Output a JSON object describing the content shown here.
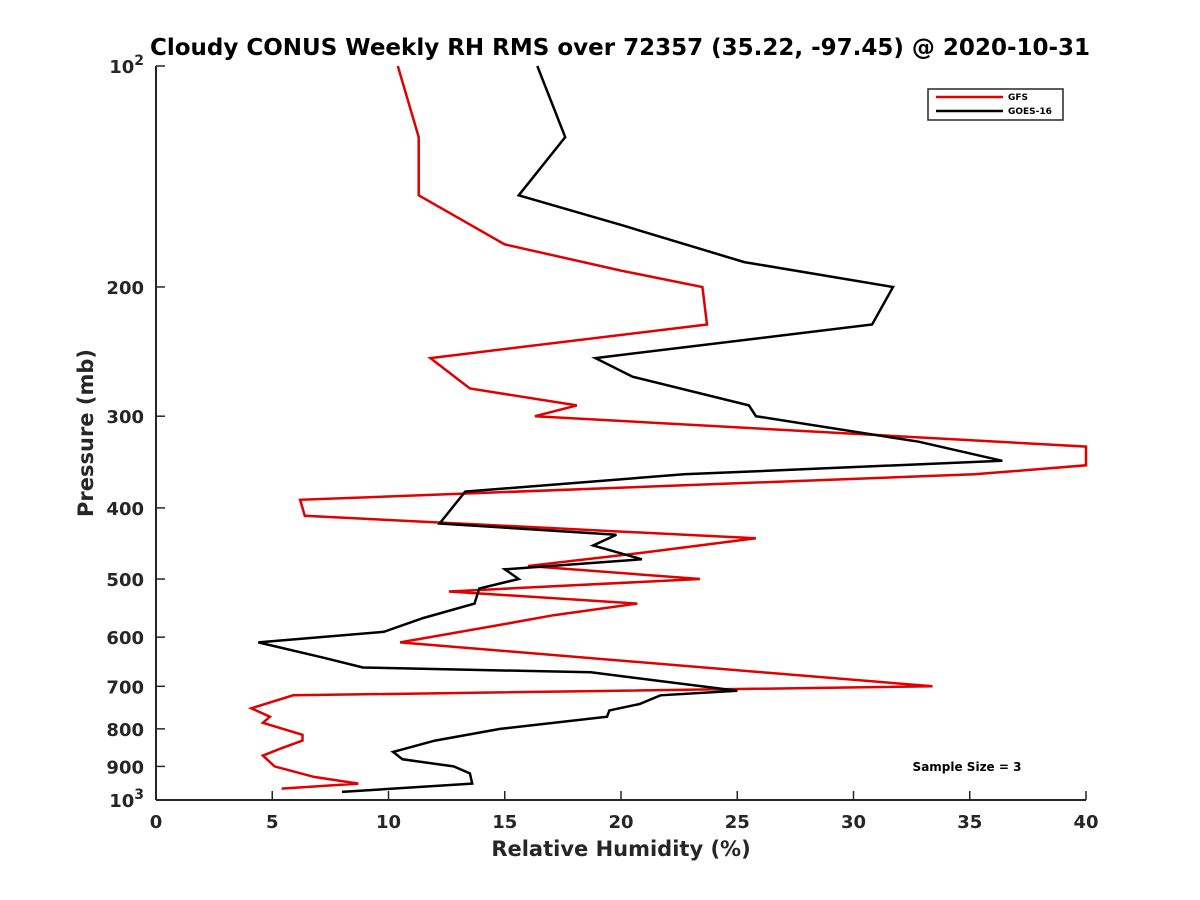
{
  "chart_data": {
    "type": "line",
    "title": "Cloudy CONUS Weekly RH RMS over 72357 (35.22, -97.45) @ 2020-10-31",
    "xlabel": "Relative Humidity (%)",
    "ylabel": "Pressure (mb)",
    "xlim": [
      0,
      40
    ],
    "ylim": [
      1000,
      100
    ],
    "y_scale": "log",
    "y_reversed": true,
    "x_ticks": [
      "0",
      "5",
      "10",
      "15",
      "20",
      "25",
      "30",
      "35",
      "40"
    ],
    "y_ticks": [
      {
        "value": 100,
        "base": "10",
        "exp": "2"
      },
      {
        "value": 200,
        "label": "200"
      },
      {
        "value": 300,
        "label": "300"
      },
      {
        "value": 400,
        "label": "400"
      },
      {
        "value": 500,
        "label": "500"
      },
      {
        "value": 600,
        "label": "600"
      },
      {
        "value": 700,
        "label": "700"
      },
      {
        "value": 800,
        "label": "800"
      },
      {
        "value": 900,
        "label": "900"
      },
      {
        "value": 1000,
        "base": "10",
        "exp": "3"
      }
    ],
    "grid": false,
    "legend_position": "top-right",
    "annotation": "Sample Size = 3",
    "series": [
      {
        "name": "GFS",
        "color": "#e00000",
        "points": [
          [
            10.4,
            100
          ],
          [
            11.3,
            125
          ],
          [
            11.3,
            150
          ],
          [
            15.0,
            175
          ],
          [
            20.0,
            190
          ],
          [
            23.5,
            200
          ],
          [
            23.7,
            225
          ],
          [
            11.8,
            250
          ],
          [
            13.5,
            275
          ],
          [
            18.1,
            290
          ],
          [
            16.3,
            300
          ],
          [
            40.0,
            330
          ],
          [
            40.0,
            350
          ],
          [
            35.2,
            360
          ],
          [
            6.2,
            390
          ],
          [
            6.4,
            410
          ],
          [
            25.8,
            440
          ],
          [
            21.0,
            460
          ],
          [
            16.0,
            480
          ],
          [
            23.4,
            500
          ],
          [
            12.6,
            520
          ],
          [
            20.7,
            540
          ],
          [
            17.1,
            560
          ],
          [
            15.1,
            575
          ],
          [
            10.5,
            610
          ],
          [
            33.4,
            700
          ],
          [
            5.9,
            720
          ],
          [
            4.1,
            750
          ],
          [
            4.9,
            770
          ],
          [
            4.6,
            785
          ],
          [
            6.3,
            815
          ],
          [
            6.3,
            830
          ],
          [
            5.4,
            850
          ],
          [
            4.6,
            870
          ],
          [
            5.1,
            900
          ],
          [
            6.8,
            930
          ],
          [
            8.7,
            950
          ],
          [
            5.4,
            965
          ]
        ]
      },
      {
        "name": "GOES-16",
        "color": "#000000",
        "points": [
          [
            16.4,
            100
          ],
          [
            17.6,
            125
          ],
          [
            15.6,
            150
          ],
          [
            20.1,
            165
          ],
          [
            25.3,
            185
          ],
          [
            31.7,
            200
          ],
          [
            30.8,
            225
          ],
          [
            18.9,
            250
          ],
          [
            20.5,
            265
          ],
          [
            25.5,
            290
          ],
          [
            25.8,
            300
          ],
          [
            32.8,
            325
          ],
          [
            36.4,
            345
          ],
          [
            22.7,
            360
          ],
          [
            13.3,
            380
          ],
          [
            12.2,
            420
          ],
          [
            19.8,
            435
          ],
          [
            18.8,
            450
          ],
          [
            20.9,
            470
          ],
          [
            15.0,
            485
          ],
          [
            15.6,
            500
          ],
          [
            13.9,
            515
          ],
          [
            13.7,
            540
          ],
          [
            11.5,
            565
          ],
          [
            9.8,
            590
          ],
          [
            4.4,
            610
          ],
          [
            7.2,
            640
          ],
          [
            8.9,
            660
          ],
          [
            18.7,
            670
          ],
          [
            25.0,
            710
          ],
          [
            21.7,
            720
          ],
          [
            20.8,
            740
          ],
          [
            19.5,
            755
          ],
          [
            19.4,
            770
          ],
          [
            14.8,
            800
          ],
          [
            12.0,
            830
          ],
          [
            10.2,
            860
          ],
          [
            10.6,
            880
          ],
          [
            12.8,
            900
          ],
          [
            13.5,
            920
          ],
          [
            13.6,
            950
          ],
          [
            8.0,
            975
          ]
        ]
      }
    ]
  }
}
